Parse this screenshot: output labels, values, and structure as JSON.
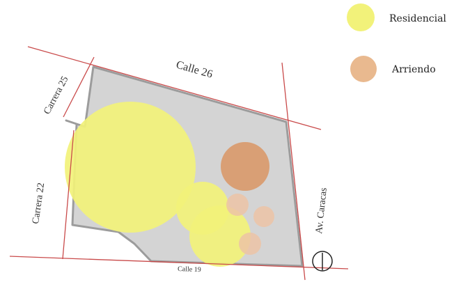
{
  "legend": {
    "items": [
      {
        "label": "Residencial",
        "color": "#f2f27a"
      },
      {
        "label": "Arriendo",
        "color": "#e9b98f"
      }
    ]
  },
  "streets": {
    "calle_26": "Calle 26",
    "carrera_25": "Carrera 25",
    "carrera_22": "Carrera 22",
    "av_caracas": "Av. Caracas",
    "calle_19": "Calle 19"
  },
  "colors": {
    "block_fill": "#d4d4d4",
    "block_stroke": "#9c9c9c",
    "street_line": "#c94a4a",
    "residencial": "#f2f27a",
    "arriendo_strong": "#d99a6c",
    "arriendo_light": "#ecc3a6"
  },
  "icons": {
    "north_arrow": "north-arrow-icon"
  }
}
